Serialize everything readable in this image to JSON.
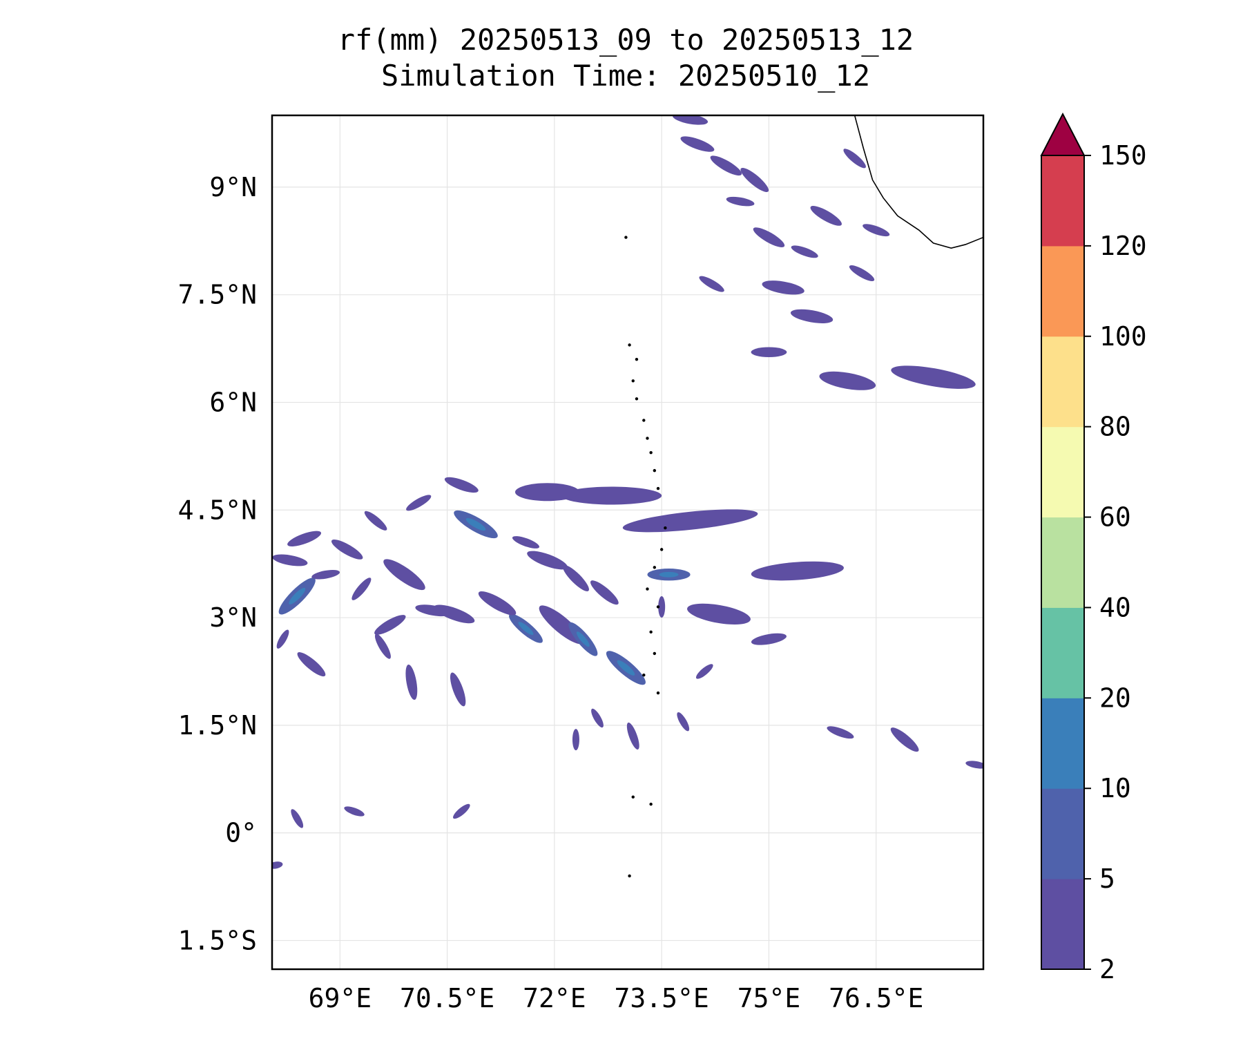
{
  "title": {
    "line1": "rf(mm) 20250513_09 to 20250513_12",
    "line2": "Simulation Time: 20250510_12"
  },
  "map": {
    "lon_range": [
      68.05,
      78.0
    ],
    "lat_range": [
      -1.9,
      10.0
    ],
    "lon_ticks": [
      {
        "value": 69.0,
        "label": "69°E"
      },
      {
        "value": 70.5,
        "label": "70.5°E"
      },
      {
        "value": 72.0,
        "label": "72°E"
      },
      {
        "value": 73.5,
        "label": "73.5°E"
      },
      {
        "value": 75.0,
        "label": "75°E"
      },
      {
        "value": 76.5,
        "label": "76.5°E"
      }
    ],
    "lat_ticks": [
      {
        "value": 9.0,
        "label": "9°N"
      },
      {
        "value": 7.5,
        "label": "7.5°N"
      },
      {
        "value": 6.0,
        "label": "6°N"
      },
      {
        "value": 4.5,
        "label": "4.5°N"
      },
      {
        "value": 3.0,
        "label": "3°N"
      },
      {
        "value": 1.5,
        "label": "1.5°N"
      },
      {
        "value": 0.0,
        "label": "0°"
      },
      {
        "value": -1.5,
        "label": "1.5°S"
      }
    ],
    "grid": true,
    "rain_cells": [
      {
        "lon": 73.9,
        "lat": 4.35,
        "len": 1.9,
        "ang": 6,
        "lvl": 0
      },
      {
        "lon": 72.8,
        "lat": 4.7,
        "len": 1.4,
        "ang": 0,
        "lvl": 0
      },
      {
        "lon": 75.4,
        "lat": 3.65,
        "len": 1.3,
        "ang": 4,
        "lvl": 0
      },
      {
        "lon": 71.9,
        "lat": 4.75,
        "len": 0.9,
        "ang": 0,
        "lvl": 0
      },
      {
        "lon": 70.9,
        "lat": 4.3,
        "len": 0.7,
        "ang": -30,
        "lvl": 1
      },
      {
        "lon": 71.9,
        "lat": 3.8,
        "len": 0.6,
        "ang": -20,
        "lvl": 0
      },
      {
        "lon": 72.3,
        "lat": 3.55,
        "len": 0.5,
        "ang": -45,
        "lvl": 0
      },
      {
        "lon": 72.7,
        "lat": 3.35,
        "len": 0.5,
        "ang": -40,
        "lvl": 0
      },
      {
        "lon": 73.0,
        "lat": 2.3,
        "len": 0.7,
        "ang": -40,
        "lvl": 1
      },
      {
        "lon": 72.1,
        "lat": 2.9,
        "len": 0.8,
        "ang": -40,
        "lvl": 0
      },
      {
        "lon": 72.4,
        "lat": 2.7,
        "len": 0.6,
        "ang": -50,
        "lvl": 1
      },
      {
        "lon": 71.6,
        "lat": 2.85,
        "len": 0.6,
        "ang": -40,
        "lvl": 1
      },
      {
        "lon": 70.6,
        "lat": 3.05,
        "len": 0.6,
        "ang": -20,
        "lvl": 0
      },
      {
        "lon": 69.9,
        "lat": 3.6,
        "len": 0.7,
        "ang": -35,
        "lvl": 0
      },
      {
        "lon": 70.3,
        "lat": 3.1,
        "len": 0.5,
        "ang": -10,
        "lvl": 0
      },
      {
        "lon": 68.4,
        "lat": 3.3,
        "len": 0.7,
        "ang": 45,
        "lvl": 1
      },
      {
        "lon": 68.3,
        "lat": 3.8,
        "len": 0.5,
        "ang": -10,
        "lvl": 0
      },
      {
        "lon": 68.5,
        "lat": 4.1,
        "len": 0.5,
        "ang": 20,
        "lvl": 0
      },
      {
        "lon": 68.2,
        "lat": 2.7,
        "len": 0.3,
        "ang": 60,
        "lvl": 0
      },
      {
        "lon": 68.6,
        "lat": 2.35,
        "len": 0.5,
        "ang": -40,
        "lvl": 0
      },
      {
        "lon": 69.6,
        "lat": 2.6,
        "len": 0.4,
        "ang": -60,
        "lvl": 0
      },
      {
        "lon": 70.0,
        "lat": 2.1,
        "len": 0.5,
        "ang": -80,
        "lvl": 0
      },
      {
        "lon": 70.65,
        "lat": 2.0,
        "len": 0.5,
        "ang": -70,
        "lvl": 0
      },
      {
        "lon": 69.1,
        "lat": 3.95,
        "len": 0.5,
        "ang": -30,
        "lvl": 0
      },
      {
        "lon": 69.5,
        "lat": 4.35,
        "len": 0.4,
        "ang": -40,
        "lvl": 0
      },
      {
        "lon": 70.1,
        "lat": 4.6,
        "len": 0.4,
        "ang": 30,
        "lvl": 0
      },
      {
        "lon": 70.7,
        "lat": 4.85,
        "len": 0.5,
        "ang": -20,
        "lvl": 0
      },
      {
        "lon": 71.2,
        "lat": 3.2,
        "len": 0.6,
        "ang": -30,
        "lvl": 0
      },
      {
        "lon": 71.6,
        "lat": 4.05,
        "len": 0.4,
        "ang": -20,
        "lvl": 0
      },
      {
        "lon": 69.7,
        "lat": 2.9,
        "len": 0.5,
        "ang": 30,
        "lvl": 0
      },
      {
        "lon": 68.8,
        "lat": 3.6,
        "len": 0.4,
        "ang": 10,
        "lvl": 0
      },
      {
        "lon": 69.3,
        "lat": 3.4,
        "len": 0.4,
        "ang": 50,
        "lvl": 0
      },
      {
        "lon": 74.3,
        "lat": 3.05,
        "len": 0.9,
        "ang": -10,
        "lvl": 0
      },
      {
        "lon": 74.1,
        "lat": 2.25,
        "len": 0.3,
        "ang": 40,
        "lvl": 0
      },
      {
        "lon": 73.5,
        "lat": 3.15,
        "len": 0.3,
        "ang": 90,
        "lvl": 0
      },
      {
        "lon": 73.6,
        "lat": 3.6,
        "len": 0.6,
        "ang": 0,
        "lvl": 1
      },
      {
        "lon": 72.6,
        "lat": 1.6,
        "len": 0.3,
        "ang": -60,
        "lvl": 0
      },
      {
        "lon": 73.1,
        "lat": 1.35,
        "len": 0.4,
        "ang": -70,
        "lvl": 0
      },
      {
        "lon": 73.8,
        "lat": 1.55,
        "len": 0.3,
        "ang": -60,
        "lvl": 0
      },
      {
        "lon": 72.3,
        "lat": 1.3,
        "len": 0.3,
        "ang": -90,
        "lvl": 0
      },
      {
        "lon": 69.2,
        "lat": 0.3,
        "len": 0.3,
        "ang": -20,
        "lvl": 0
      },
      {
        "lon": 68.4,
        "lat": 0.2,
        "len": 0.3,
        "ang": -60,
        "lvl": 0
      },
      {
        "lon": 70.7,
        "lat": 0.3,
        "len": 0.3,
        "ang": 40,
        "lvl": 0
      },
      {
        "lon": 68.1,
        "lat": -0.45,
        "len": 0.2,
        "ang": 10,
        "lvl": 0
      },
      {
        "lon": 75.0,
        "lat": 2.7,
        "len": 0.5,
        "ang": 10,
        "lvl": 0
      },
      {
        "lon": 76.0,
        "lat": 1.4,
        "len": 0.4,
        "ang": -20,
        "lvl": 0
      },
      {
        "lon": 76.9,
        "lat": 1.3,
        "len": 0.5,
        "ang": -40,
        "lvl": 0
      },
      {
        "lon": 77.9,
        "lat": 0.95,
        "len": 0.3,
        "ang": -10,
        "lvl": 0
      },
      {
        "lon": 76.1,
        "lat": 6.3,
        "len": 0.8,
        "ang": -10,
        "lvl": 0
      },
      {
        "lon": 77.3,
        "lat": 6.35,
        "len": 1.2,
        "ang": -10,
        "lvl": 0
      },
      {
        "lon": 75.2,
        "lat": 7.6,
        "len": 0.6,
        "ang": -10,
        "lvl": 0
      },
      {
        "lon": 75.6,
        "lat": 7.2,
        "len": 0.6,
        "ang": -10,
        "lvl": 0
      },
      {
        "lon": 75.0,
        "lat": 8.3,
        "len": 0.5,
        "ang": -30,
        "lvl": 0
      },
      {
        "lon": 74.4,
        "lat": 9.3,
        "len": 0.5,
        "ang": -30,
        "lvl": 0
      },
      {
        "lon": 74.0,
        "lat": 9.6,
        "len": 0.5,
        "ang": -20,
        "lvl": 0
      },
      {
        "lon": 74.8,
        "lat": 9.1,
        "len": 0.5,
        "ang": -40,
        "lvl": 0
      },
      {
        "lon": 73.9,
        "lat": 9.95,
        "len": 0.5,
        "ang": -10,
        "lvl": 0
      },
      {
        "lon": 75.8,
        "lat": 8.6,
        "len": 0.5,
        "ang": -30,
        "lvl": 0
      },
      {
        "lon": 76.5,
        "lat": 8.4,
        "len": 0.4,
        "ang": -20,
        "lvl": 0
      },
      {
        "lon": 76.2,
        "lat": 9.4,
        "len": 0.4,
        "ang": -40,
        "lvl": 0
      },
      {
        "lon": 76.3,
        "lat": 7.8,
        "len": 0.4,
        "ang": -30,
        "lvl": 0
      },
      {
        "lon": 74.6,
        "lat": 8.8,
        "len": 0.4,
        "ang": -10,
        "lvl": 0
      },
      {
        "lon": 75.0,
        "lat": 6.7,
        "len": 0.5,
        "ang": 0,
        "lvl": 0
      },
      {
        "lon": 75.5,
        "lat": 8.1,
        "len": 0.4,
        "ang": -20,
        "lvl": 0
      },
      {
        "lon": 74.2,
        "lat": 7.65,
        "len": 0.4,
        "ang": -30,
        "lvl": 0
      }
    ],
    "coast_kerala": [
      [
        76.2,
        10.0
      ],
      [
        76.32,
        9.55
      ],
      [
        76.45,
        9.1
      ],
      [
        76.6,
        8.85
      ],
      [
        76.8,
        8.6
      ],
      [
        77.1,
        8.4
      ],
      [
        77.3,
        8.22
      ],
      [
        77.55,
        8.15
      ],
      [
        77.75,
        8.2
      ],
      [
        78.0,
        8.3
      ]
    ],
    "islands": [
      [
        73.0,
        8.3
      ],
      [
        73.05,
        6.8
      ],
      [
        73.15,
        6.6
      ],
      [
        73.1,
        6.3
      ],
      [
        73.15,
        6.05
      ],
      [
        73.25,
        5.75
      ],
      [
        73.3,
        5.5
      ],
      [
        73.35,
        5.3
      ],
      [
        73.4,
        5.05
      ],
      [
        73.45,
        4.8
      ],
      [
        73.55,
        4.25
      ],
      [
        73.5,
        3.95
      ],
      [
        73.4,
        3.7
      ],
      [
        73.3,
        3.4
      ],
      [
        73.45,
        3.15
      ],
      [
        73.35,
        2.8
      ],
      [
        73.4,
        2.5
      ],
      [
        73.25,
        2.2
      ],
      [
        73.45,
        1.95
      ],
      [
        73.1,
        0.5
      ],
      [
        73.35,
        0.4
      ],
      [
        73.05,
        -0.6
      ]
    ]
  },
  "colorbar": {
    "levels": [
      "2",
      "5",
      "10",
      "20",
      "40",
      "60",
      "80",
      "100",
      "120",
      "150"
    ],
    "colors": [
      "#5e4fa2",
      "#4f62ac",
      "#3a7fba",
      "#66c2a5",
      "#b9e1a0",
      "#f5fab1",
      "#fde08b",
      "#fa9856",
      "#d53e4f"
    ],
    "extend_color": "#9e0142"
  }
}
